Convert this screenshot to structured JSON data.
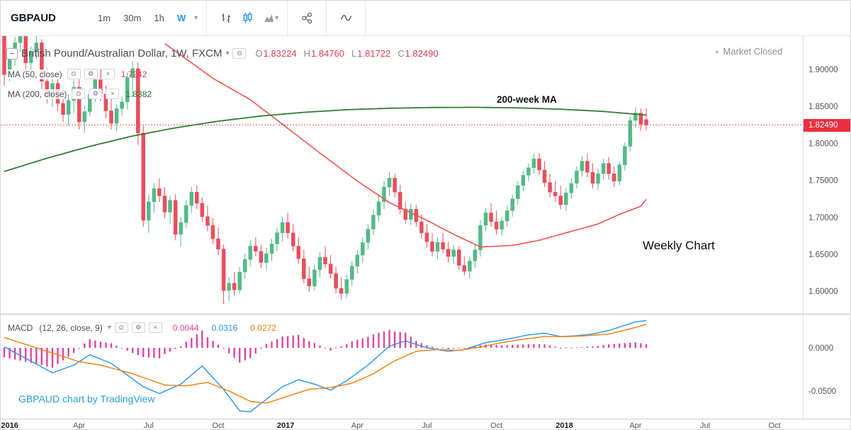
{
  "icons": {
    "collapse": "−",
    "chevron_down": "▾",
    "eye": "⊙",
    "gear": "⚙",
    "close": "×",
    "dot": "●"
  },
  "toolbar": {
    "symbol": "GBPAUD",
    "intervals": [
      {
        "label": "1m"
      },
      {
        "label": "30m"
      },
      {
        "label": "1h"
      },
      {
        "label": "W",
        "active": true
      }
    ]
  },
  "legend": {
    "title": "British Pound/Australian Dollar, 1W, FXCM",
    "ohlc": {
      "o_label": "O",
      "o": "1.83224",
      "h_label": "H",
      "h": "1.84760",
      "l_label": "L",
      "l": "1.81722",
      "c_label": "C",
      "c": "1.82490"
    },
    "ma50": {
      "name": "MA (50, close)",
      "value": "1.7242"
    },
    "ma200": {
      "name": "MA (200, close)",
      "value": "1.8382"
    }
  },
  "status": {
    "market_closed": "Market Closed"
  },
  "annotations": {
    "ma200_label": "200-week MA",
    "weekly_chart": "Weekly Chart"
  },
  "macd_legend": {
    "title": "MACD",
    "params": "(12, 26, close, 9)",
    "hist_value": "0.0044",
    "macd_value": "0.0316",
    "signal_value": "0.0272"
  },
  "watermark": "GBPAUD chart by TradingView",
  "price_axis": {
    "last_price": "1.82490",
    "ticks": [
      {
        "label": "1.90000",
        "value": 1.9
      },
      {
        "label": "1.85000",
        "value": 1.85
      },
      {
        "label": "1.80000",
        "value": 1.8
      },
      {
        "label": "1.75000",
        "value": 1.75
      },
      {
        "label": "1.70000",
        "value": 1.7
      },
      {
        "label": "1.65000",
        "value": 1.65
      },
      {
        "label": "1.60000",
        "value": 1.6
      }
    ]
  },
  "macd_axis": {
    "ticks": [
      {
        "label": "0.0000",
        "value": 0
      },
      {
        "label": "-0.0500",
        "value": -0.05
      }
    ]
  },
  "time_axis": {
    "ticks": [
      {
        "label": "2016",
        "week": 1,
        "major": true
      },
      {
        "label": "Apr",
        "week": 14,
        "major": false
      },
      {
        "label": "Jul",
        "week": 27,
        "major": false
      },
      {
        "label": "Oct",
        "week": 40,
        "major": false
      },
      {
        "label": "2017",
        "week": 52.6,
        "major": true
      },
      {
        "label": "Apr",
        "week": 66,
        "major": false
      },
      {
        "label": "Jul",
        "week": 79,
        "major": false
      },
      {
        "label": "Oct",
        "week": 92,
        "major": false
      },
      {
        "label": "2018",
        "week": 104.7,
        "major": true
      },
      {
        "label": "Apr",
        "week": 118,
        "major": false
      },
      {
        "label": "Jul",
        "week": 131,
        "major": false
      },
      {
        "label": "Oct",
        "week": 144,
        "major": false
      }
    ]
  },
  "colors": {
    "up": "#53b987",
    "down": "#eb4d5c",
    "ma50": "#ef5350",
    "ma200": "#2f7d31",
    "macd": "#2196f3",
    "signal": "#f57c00",
    "hist": "#e0459c",
    "last_price_line": "#ef5350",
    "tag_bg": "#eb2e3e",
    "accent": "#2196f3"
  },
  "chart_data": {
    "type": "candlestick",
    "title": "British Pound/Australian Dollar, 1W, FXCM",
    "interval": "1W",
    "x_unit": "week_index_from_jan_2016",
    "price_pane": {
      "ylim": [
        1.571,
        1.935
      ],
      "ohlc": [
        [
          1.955,
          1.96,
          1.878,
          1.893
        ],
        [
          1.893,
          1.926,
          1.884,
          1.916
        ],
        [
          1.916,
          1.944,
          1.905,
          1.936
        ],
        [
          1.936,
          1.956,
          1.924,
          1.947
        ],
        [
          1.947,
          1.952,
          1.899,
          1.909
        ],
        [
          1.909,
          1.931,
          1.895,
          1.924
        ],
        [
          1.924,
          1.945,
          1.914,
          1.936
        ],
        [
          1.936,
          1.941,
          1.869,
          1.884
        ],
        [
          1.884,
          1.901,
          1.854,
          1.864
        ],
        [
          1.864,
          1.891,
          1.849,
          1.881
        ],
        [
          1.881,
          1.896,
          1.844,
          1.854
        ],
        [
          1.854,
          1.871,
          1.829,
          1.839
        ],
        [
          1.839,
          1.866,
          1.824,
          1.858
        ],
        [
          1.858,
          1.886,
          1.841,
          1.876
        ],
        [
          1.876,
          1.891,
          1.819,
          1.829
        ],
        [
          1.829,
          1.851,
          1.814,
          1.843
        ],
        [
          1.843,
          1.873,
          1.836,
          1.866
        ],
        [
          1.866,
          1.896,
          1.856,
          1.886
        ],
        [
          1.886,
          1.901,
          1.857,
          1.867
        ],
        [
          1.867,
          1.878,
          1.834,
          1.844
        ],
        [
          1.844,
          1.861,
          1.819,
          1.827
        ],
        [
          1.827,
          1.853,
          1.817,
          1.847
        ],
        [
          1.847,
          1.863,
          1.837,
          1.856
        ],
        [
          1.856,
          1.896,
          1.846,
          1.889
        ],
        [
          1.889,
          1.911,
          1.863,
          1.901
        ],
        [
          1.901,
          1.909,
          1.798,
          1.814
        ],
        [
          1.814,
          1.824,
          1.687,
          1.696
        ],
        [
          1.696,
          1.731,
          1.679,
          1.721
        ],
        [
          1.721,
          1.746,
          1.706,
          1.739
        ],
        [
          1.739,
          1.753,
          1.721,
          1.729
        ],
        [
          1.729,
          1.741,
          1.699,
          1.707
        ],
        [
          1.707,
          1.729,
          1.691,
          1.723
        ],
        [
          1.723,
          1.731,
          1.669,
          1.677
        ],
        [
          1.677,
          1.701,
          1.661,
          1.693
        ],
        [
          1.693,
          1.723,
          1.686,
          1.716
        ],
        [
          1.716,
          1.741,
          1.706,
          1.734
        ],
        [
          1.734,
          1.743,
          1.711,
          1.719
        ],
        [
          1.719,
          1.727,
          1.694,
          1.701
        ],
        [
          1.701,
          1.716,
          1.681,
          1.689
        ],
        [
          1.689,
          1.699,
          1.664,
          1.671
        ],
        [
          1.671,
          1.686,
          1.649,
          1.657
        ],
        [
          1.657,
          1.663,
          1.583,
          1.601
        ],
        [
          1.601,
          1.619,
          1.587,
          1.611
        ],
        [
          1.611,
          1.626,
          1.594,
          1.602
        ],
        [
          1.602,
          1.633,
          1.597,
          1.626
        ],
        [
          1.626,
          1.651,
          1.617,
          1.643
        ],
        [
          1.643,
          1.669,
          1.634,
          1.661
        ],
        [
          1.661,
          1.673,
          1.647,
          1.654
        ],
        [
          1.654,
          1.663,
          1.631,
          1.639
        ],
        [
          1.639,
          1.659,
          1.629,
          1.651
        ],
        [
          1.651,
          1.671,
          1.641,
          1.664
        ],
        [
          1.664,
          1.686,
          1.654,
          1.679
        ],
        [
          1.679,
          1.701,
          1.667,
          1.693
        ],
        [
          1.693,
          1.706,
          1.671,
          1.679
        ],
        [
          1.679,
          1.691,
          1.654,
          1.661
        ],
        [
          1.661,
          1.673,
          1.637,
          1.644
        ],
        [
          1.644,
          1.656,
          1.611,
          1.617
        ],
        [
          1.617,
          1.633,
          1.599,
          1.607
        ],
        [
          1.607,
          1.636,
          1.601,
          1.629
        ],
        [
          1.629,
          1.653,
          1.619,
          1.646
        ],
        [
          1.646,
          1.661,
          1.631,
          1.637
        ],
        [
          1.637,
          1.649,
          1.617,
          1.624
        ],
        [
          1.624,
          1.633,
          1.597,
          1.604
        ],
        [
          1.604,
          1.619,
          1.589,
          1.597
        ],
        [
          1.597,
          1.623,
          1.591,
          1.616
        ],
        [
          1.616,
          1.641,
          1.607,
          1.634
        ],
        [
          1.634,
          1.656,
          1.624,
          1.649
        ],
        [
          1.649,
          1.673,
          1.639,
          1.666
        ],
        [
          1.666,
          1.691,
          1.657,
          1.684
        ],
        [
          1.684,
          1.711,
          1.676,
          1.703
        ],
        [
          1.703,
          1.729,
          1.694,
          1.721
        ],
        [
          1.721,
          1.749,
          1.711,
          1.741
        ],
        [
          1.741,
          1.761,
          1.729,
          1.753
        ],
        [
          1.753,
          1.759,
          1.727,
          1.734
        ],
        [
          1.734,
          1.744,
          1.704,
          1.711
        ],
        [
          1.711,
          1.721,
          1.691,
          1.697
        ],
        [
          1.697,
          1.719,
          1.689,
          1.711
        ],
        [
          1.711,
          1.717,
          1.687,
          1.694
        ],
        [
          1.694,
          1.704,
          1.671,
          1.679
        ],
        [
          1.679,
          1.691,
          1.659,
          1.667
        ],
        [
          1.667,
          1.679,
          1.647,
          1.654
        ],
        [
          1.654,
          1.673,
          1.644,
          1.666
        ],
        [
          1.666,
          1.679,
          1.651,
          1.657
        ],
        [
          1.657,
          1.667,
          1.639,
          1.647
        ],
        [
          1.647,
          1.663,
          1.637,
          1.656
        ],
        [
          1.656,
          1.661,
          1.629,
          1.635
        ],
        [
          1.635,
          1.647,
          1.621,
          1.627
        ],
        [
          1.627,
          1.646,
          1.617,
          1.641
        ],
        [
          1.641,
          1.663,
          1.631,
          1.656
        ],
        [
          1.656,
          1.696,
          1.647,
          1.689
        ],
        [
          1.689,
          1.713,
          1.681,
          1.706
        ],
        [
          1.706,
          1.719,
          1.687,
          1.694
        ],
        [
          1.694,
          1.709,
          1.677,
          1.684
        ],
        [
          1.684,
          1.701,
          1.675,
          1.695
        ],
        [
          1.695,
          1.716,
          1.687,
          1.709
        ],
        [
          1.709,
          1.731,
          1.701,
          1.725
        ],
        [
          1.725,
          1.749,
          1.717,
          1.743
        ],
        [
          1.743,
          1.763,
          1.735,
          1.757
        ],
        [
          1.757,
          1.773,
          1.749,
          1.767
        ],
        [
          1.767,
          1.786,
          1.759,
          1.779
        ],
        [
          1.779,
          1.787,
          1.757,
          1.764
        ],
        [
          1.764,
          1.776,
          1.741,
          1.747
        ],
        [
          1.747,
          1.759,
          1.727,
          1.734
        ],
        [
          1.734,
          1.749,
          1.721,
          1.729
        ],
        [
          1.729,
          1.743,
          1.711,
          1.717
        ],
        [
          1.717,
          1.739,
          1.709,
          1.733
        ],
        [
          1.733,
          1.753,
          1.725,
          1.746
        ],
        [
          1.746,
          1.769,
          1.739,
          1.763
        ],
        [
          1.763,
          1.783,
          1.755,
          1.776
        ],
        [
          1.776,
          1.786,
          1.754,
          1.761
        ],
        [
          1.761,
          1.773,
          1.739,
          1.746
        ],
        [
          1.746,
          1.766,
          1.737,
          1.759
        ],
        [
          1.759,
          1.779,
          1.751,
          1.773
        ],
        [
          1.773,
          1.781,
          1.751,
          1.759
        ],
        [
          1.759,
          1.769,
          1.741,
          1.749
        ],
        [
          1.749,
          1.776,
          1.743,
          1.771
        ],
        [
          1.771,
          1.801,
          1.763,
          1.796
        ],
        [
          1.796,
          1.836,
          1.789,
          1.831
        ],
        [
          1.831,
          1.849,
          1.821,
          1.841
        ],
        [
          1.841,
          1.847,
          1.817,
          1.826
        ],
        [
          1.83224,
          1.8476,
          1.81722,
          1.8249
        ]
      ],
      "ma50_points": [
        [
          30,
          1.935
        ],
        [
          39,
          1.888
        ],
        [
          46,
          1.859
        ],
        [
          50,
          1.837
        ],
        [
          59,
          1.787
        ],
        [
          66,
          1.749
        ],
        [
          72,
          1.72
        ],
        [
          79,
          1.696
        ],
        [
          84,
          1.677
        ],
        [
          89,
          1.66
        ],
        [
          95,
          1.662
        ],
        [
          100,
          1.669
        ],
        [
          105,
          1.679
        ],
        [
          111,
          1.691
        ],
        [
          115,
          1.704
        ],
        [
          119,
          1.715
        ],
        [
          120,
          1.7242
        ]
      ],
      "ma200_points": [
        [
          0,
          1.762
        ],
        [
          8,
          1.78
        ],
        [
          16,
          1.796
        ],
        [
          24,
          1.81
        ],
        [
          32,
          1.821
        ],
        [
          40,
          1.83
        ],
        [
          48,
          1.837
        ],
        [
          56,
          1.842
        ],
        [
          64,
          1.8455
        ],
        [
          72,
          1.8475
        ],
        [
          80,
          1.8485
        ],
        [
          88,
          1.8488
        ],
        [
          96,
          1.848
        ],
        [
          104,
          1.8462
        ],
        [
          112,
          1.8432
        ],
        [
          120,
          1.8382
        ]
      ],
      "last_price": 1.8249
    },
    "macd_pane": {
      "ylim": [
        -0.082,
        0.041
      ],
      "macd_points": [
        [
          0,
          0.001
        ],
        [
          4,
          -0.012
        ],
        [
          9,
          -0.029
        ],
        [
          13,
          -0.02
        ],
        [
          16,
          -0.008
        ],
        [
          20,
          -0.018
        ],
        [
          26,
          -0.045
        ],
        [
          29,
          -0.053
        ],
        [
          33,
          -0.042
        ],
        [
          37,
          -0.021
        ],
        [
          41,
          -0.048
        ],
        [
          44,
          -0.073
        ],
        [
          46,
          -0.074
        ],
        [
          52,
          -0.045
        ],
        [
          55,
          -0.037
        ],
        [
          58,
          -0.042
        ],
        [
          61,
          -0.049
        ],
        [
          64,
          -0.038
        ],
        [
          68,
          -0.02
        ],
        [
          72,
          0.002
        ],
        [
          75,
          0.008
        ],
        [
          79,
          0.0
        ],
        [
          83,
          -0.004
        ],
        [
          86,
          -0.002
        ],
        [
          90,
          0.006
        ],
        [
          94,
          0.01
        ],
        [
          98,
          0.015
        ],
        [
          101,
          0.017
        ],
        [
          104,
          0.013
        ],
        [
          107,
          0.014
        ],
        [
          110,
          0.016
        ],
        [
          113,
          0.02
        ],
        [
          116,
          0.026
        ],
        [
          118,
          0.03
        ],
        [
          120,
          0.0316
        ]
      ],
      "signal_points": [
        [
          0,
          0.012
        ],
        [
          5,
          0.002
        ],
        [
          10,
          -0.008
        ],
        [
          14,
          -0.016
        ],
        [
          18,
          -0.02
        ],
        [
          24,
          -0.03
        ],
        [
          30,
          -0.043
        ],
        [
          34,
          -0.044
        ],
        [
          38,
          -0.04
        ],
        [
          42,
          -0.05
        ],
        [
          46,
          -0.062
        ],
        [
          49,
          -0.064
        ],
        [
          53,
          -0.056
        ],
        [
          57,
          -0.048
        ],
        [
          61,
          -0.046
        ],
        [
          65,
          -0.041
        ],
        [
          69,
          -0.03
        ],
        [
          73,
          -0.015
        ],
        [
          77,
          -0.004
        ],
        [
          81,
          -0.002
        ],
        [
          85,
          -0.003
        ],
        [
          89,
          0.001
        ],
        [
          93,
          0.006
        ],
        [
          97,
          0.01
        ],
        [
          101,
          0.013
        ],
        [
          105,
          0.013
        ],
        [
          109,
          0.014
        ],
        [
          113,
          0.016
        ],
        [
          117,
          0.022
        ],
        [
          120,
          0.0272
        ]
      ],
      "hist_formula": "macd - signal",
      "last_values": {
        "hist": 0.0044,
        "macd": 0.0316,
        "signal": 0.0272
      }
    }
  }
}
